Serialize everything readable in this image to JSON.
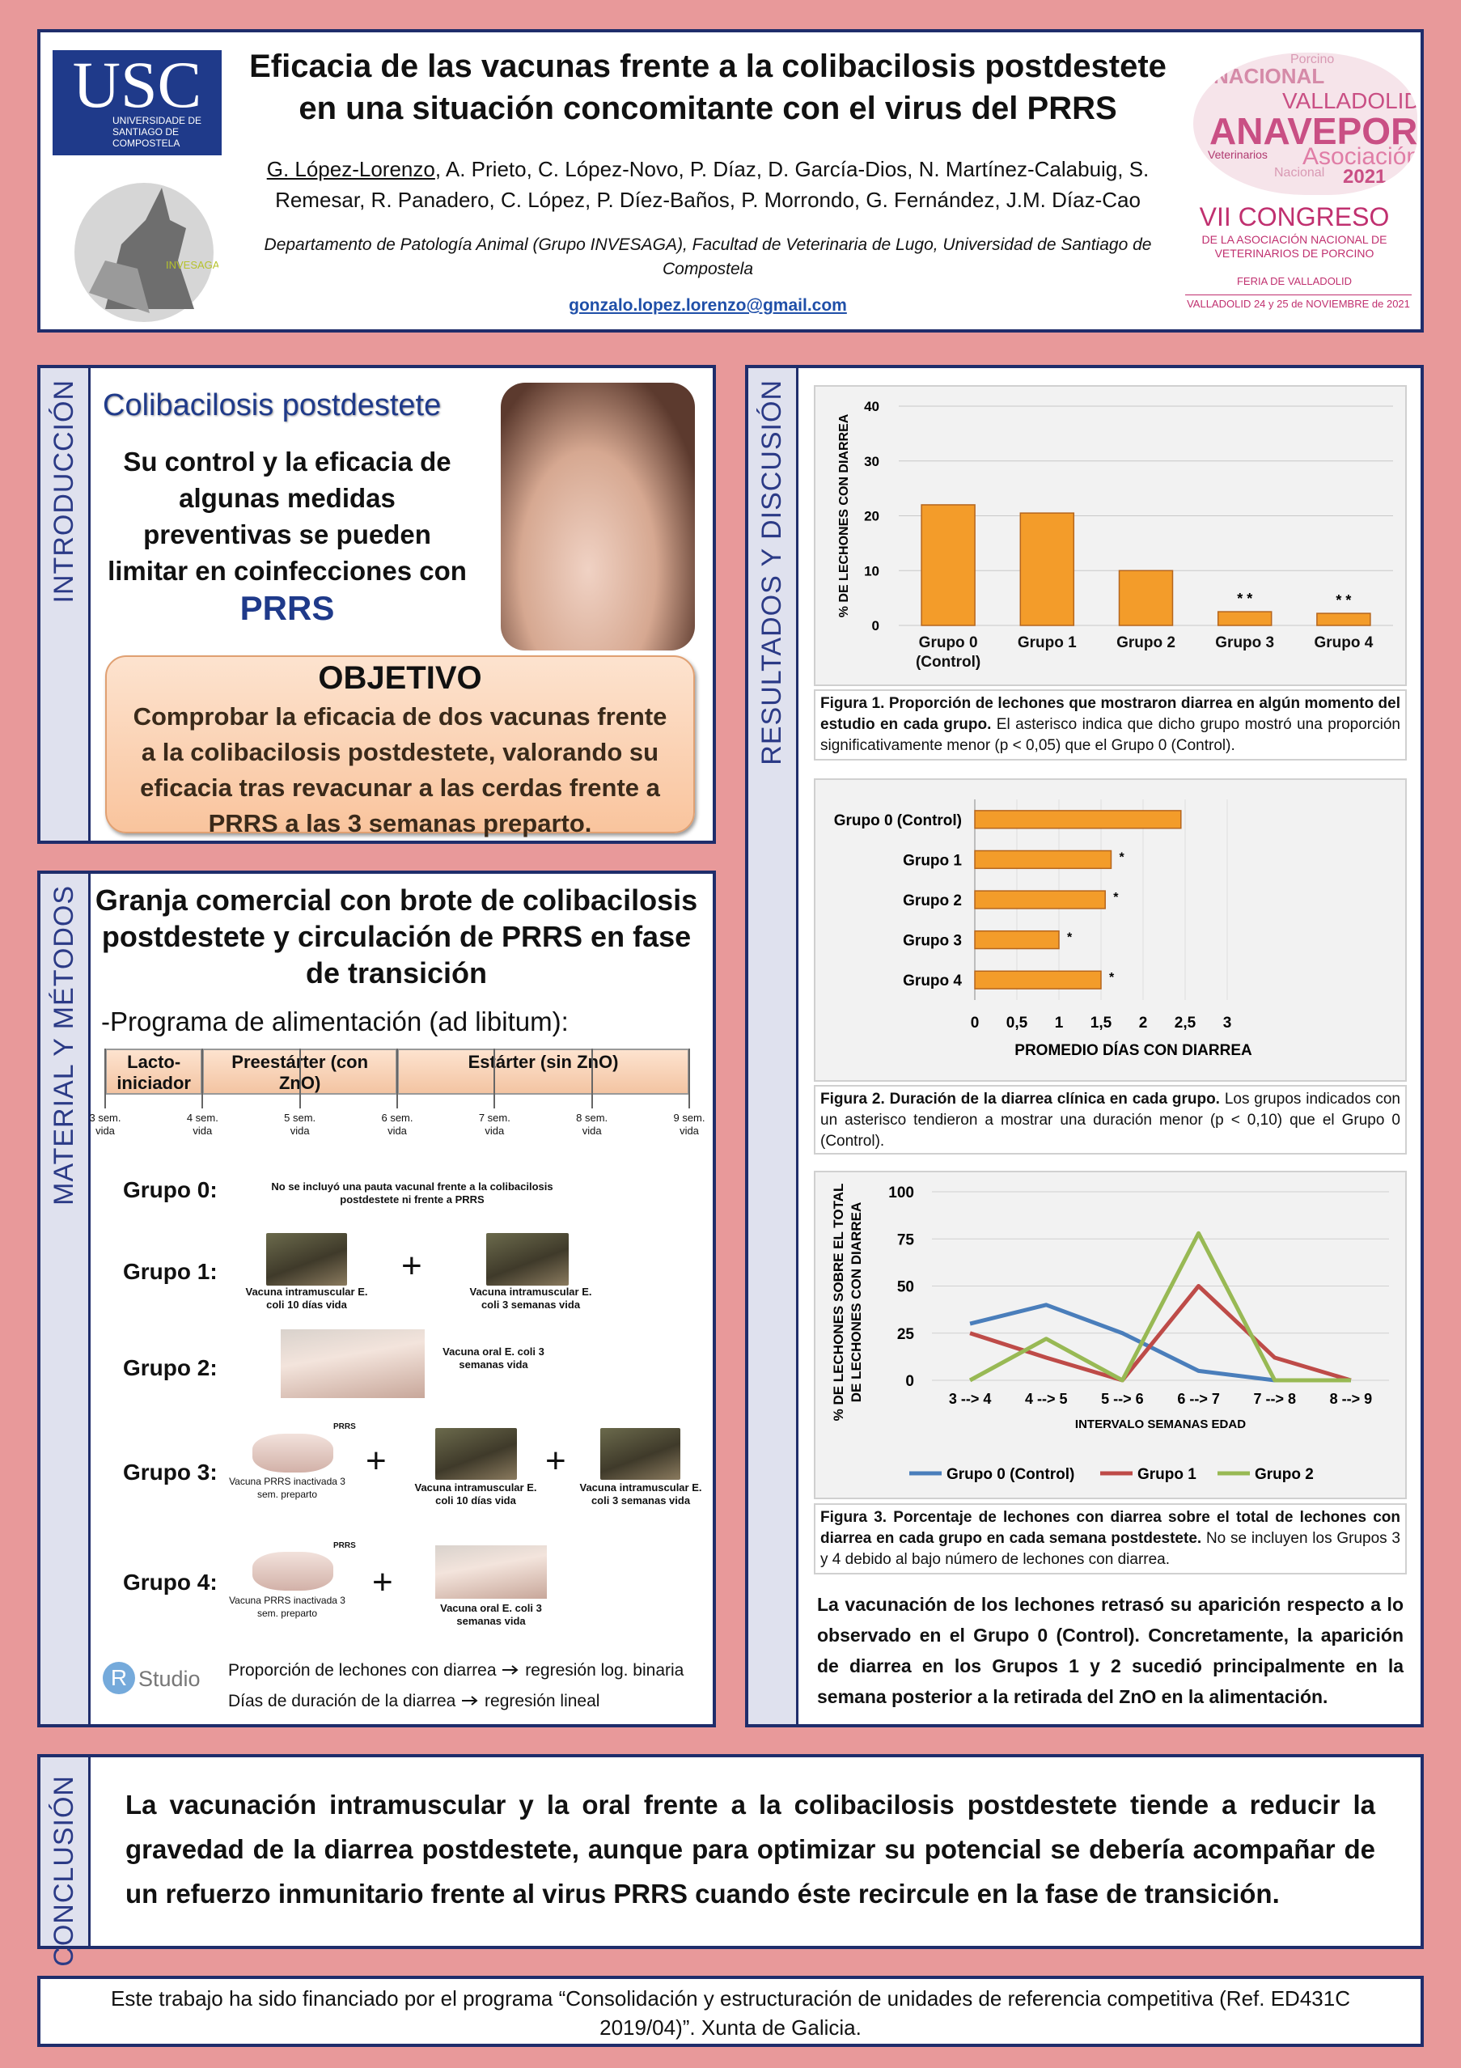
{
  "header": {
    "title": "Eficacia de las vacunas frente a la colibacilosis postdestete en una situación concomitante con el virus del PRRS",
    "presenting_author": "G. López-Lorenzo",
    "authors": ", A. Prieto, C. López-Novo, P. Díaz, D. García-Dios, N. Martínez-Calabuig, S. Remesar, R. Panadero, C. López, P. Díez-Baños, P. Morrondo, G. Fernández, J.M. Díaz-Cao",
    "affiliation": "Departamento de Patología Animal (Grupo INVESAGA), Facultad de Veterinaria de Lugo, Universidad de Santiago de Compostela",
    "email": "gonzalo.lopez.lorenzo@gmail.com",
    "logo_left": {
      "acronym": "USC",
      "name": "UNIVERSIDADE DE SANTIAGO DE COMPOSTELA",
      "group": "INVESAGA"
    },
    "logo_right": {
      "cloud": [
        "Porcino",
        "NACIONAL",
        "VALLADOLID",
        "ANAVEPOR",
        "Veterinarios",
        "Asociación",
        "Nacional",
        "2021"
      ],
      "congress": "VII CONGRESO",
      "association": "DE LA ASOCIACIÓN NACIONAL DE VETERINARIOS DE PORCINO",
      "venue": "FERIA DE VALLADOLID",
      "dates": "VALLADOLID 24 y 25 de NOVIEMBRE de 2021"
    }
  },
  "introduction": {
    "heading": "INTRODUCCIÓN",
    "title": "Colibacilosis postdestete",
    "text": "Su control y la eficacia de algunas medidas preventivas se pueden limitar en coinfecciones con",
    "highlight": "PRRS",
    "objective_title": "OBJETIVO",
    "objective": "Comprobar la eficacia de dos vacunas frente a la colibacilosis postdestete, valorando su eficacia tras revacunar a las cerdas frente a PRRS a las 3 semanas preparto."
  },
  "methods": {
    "heading": "MATERIAL Y MÉTODOS",
    "title": "Granja comercial con brote de colibacilosis postdestete y circulación de PRRS en fase de transición",
    "feeding_program": "-Programa de alimentación (ad libitum):",
    "phases": [
      "Lacto-iniciador",
      "Preestárter (con ZnO)",
      "Estárter (sin ZnO)"
    ],
    "weeks": [
      "3 sem. vida",
      "4 sem. vida",
      "5 sem. vida",
      "6 sem. vida",
      "7 sem. vida",
      "8 sem. vida",
      "9 sem. vida"
    ],
    "groups": [
      {
        "label": "Grupo 0:",
        "note": "No se incluyó una pauta vacunal frente a la colibacilosis postdestete ni frente a PRRS"
      },
      {
        "label": "Grupo 1:",
        "items": [
          "Vacuna intramuscular E. coli 10 días vida",
          "Vacuna intramuscular E. coli 3 semanas vida"
        ]
      },
      {
        "label": "Grupo 2:",
        "items": [
          "Vacuna oral E. coli 3 semanas vida"
        ]
      },
      {
        "label": "Grupo 3:",
        "syringe_label": "PRRS",
        "items": [
          "Vacuna PRRS inactivada 3 sem. preparto",
          "Vacuna intramuscular E. coli 10 días vida",
          "Vacuna intramuscular E. coli 3 semanas vida"
        ]
      },
      {
        "label": "Grupo 4:",
        "syringe_label": "PRRS",
        "items": [
          "Vacuna PRRS inactivada 3 sem. preparto",
          "Vacuna oral E. coli 3 semanas vida"
        ]
      }
    ],
    "software": {
      "logo_r": "R",
      "logo_text": "Studio"
    },
    "analyses": [
      {
        "variable": "Proporción de lechones con diarrea",
        "method": "regresión log. binaria"
      },
      {
        "variable": "Días de duración de la diarrea",
        "method": "regresión lineal"
      }
    ]
  },
  "results": {
    "heading": "RESULTADOS Y DISCUSIÓN",
    "discussion": "La vacunación de los lechones retrasó su aparición respecto a lo observado en el Grupo 0 (Control). Concretamente, la aparición de diarrea en los Grupos 1 y 2 sucedió principalmente en la semana posterior a la retirada del ZnO en la alimentación."
  },
  "chart_data": [
    {
      "type": "bar",
      "categories": [
        "Grupo 0 (Control)",
        "Grupo 1",
        "Grupo 2",
        "Grupo 3",
        "Grupo 4"
      ],
      "values": [
        22,
        20.5,
        10,
        2.5,
        2.2
      ],
      "significance": [
        null,
        null,
        null,
        "* *",
        "* *"
      ],
      "color": "#f39c2a",
      "ylabel": "% DE LECHONES CON DIARREA",
      "ylim": [
        0,
        40
      ],
      "yticks": [
        0,
        10,
        20,
        30,
        40
      ],
      "grid": true,
      "caption_title": "Figura 1. Proporción de lechones que mostraron diarrea en algún momento del estudio en cada grupo.",
      "caption": " El asterisco indica que dicho grupo mostró una proporción significativamente menor (p < 0,05) que el Grupo 0 (Control)."
    },
    {
      "type": "barh",
      "categories": [
        "Grupo 0 (Control)",
        "Grupo 1",
        "Grupo 2",
        "Grupo 3",
        "Grupo 4"
      ],
      "values": [
        2.45,
        1.62,
        1.55,
        1.0,
        1.5
      ],
      "significance": [
        null,
        "*",
        "*",
        "*",
        "*"
      ],
      "color": "#f39c2a",
      "xlabel": "PROMEDIO DÍAS CON DIARREA",
      "xlim": [
        0,
        3
      ],
      "xticks": [
        0,
        {
          "value": 0.5,
          "label": "0,5"
        },
        1,
        {
          "value": 1.5,
          "label": "1,5"
        },
        2,
        {
          "value": 2.5,
          "label": "2,5"
        },
        3
      ],
      "grid": true,
      "caption_title": "Figura 2. Duración de la diarrea clínica en cada grupo.",
      "caption": " Los grupos indicados con un asterisco tendieron a mostrar una duración menor (p < 0,10) que el Grupo 0 (Control)."
    },
    {
      "type": "line",
      "categories": [
        "3 --> 4",
        "4 --> 5",
        "5 --> 6",
        "6 --> 7",
        "7 --> 8",
        "8 --> 9"
      ],
      "series": [
        {
          "name": "Grupo 0 (Control)",
          "color": "#4a7ebb",
          "values": [
            30,
            40,
            25,
            5,
            0,
            0
          ]
        },
        {
          "name": "Grupo 1",
          "color": "#be4b48",
          "values": [
            25,
            12,
            0,
            50,
            12,
            0
          ]
        },
        {
          "name": "Grupo 2",
          "color": "#98b954",
          "values": [
            0,
            22,
            0,
            78,
            0,
            0
          ]
        }
      ],
      "xlabel": "INTERVALO SEMANAS EDAD",
      "ylabel": [
        "% DE LECHONES SOBRE EL TOTAL",
        "DE LECHONES CON DIARREA"
      ],
      "ylim": [
        0,
        100
      ],
      "yticks": [
        0,
        25,
        50,
        75,
        100
      ],
      "grid": true,
      "caption_title": "Figura 3. Porcentaje de lechones con diarrea sobre el total de lechones con diarrea en cada grupo en cada semana postdestete.",
      "caption": " No se incluyen los Grupos 3 y 4 debido al bajo número de lechones con diarrea."
    }
  ],
  "conclusion": {
    "heading": "CONCLUSIÓN",
    "text": "La vacunación intramuscular y la oral frente a la colibacilosis postdestete tiende a reducir la gravedad de la diarrea postdestete, aunque para optimizar su potencial se debería acompañar de un refuerzo inmunitario frente al virus PRRS cuando éste recircule en la fase de transición."
  },
  "funding": "Este trabajo ha sido financiado por el programa “Consolidación y estructuración de unidades de referencia competitiva (Ref. ED431C 2019/04)”. Xunta de Galicia."
}
